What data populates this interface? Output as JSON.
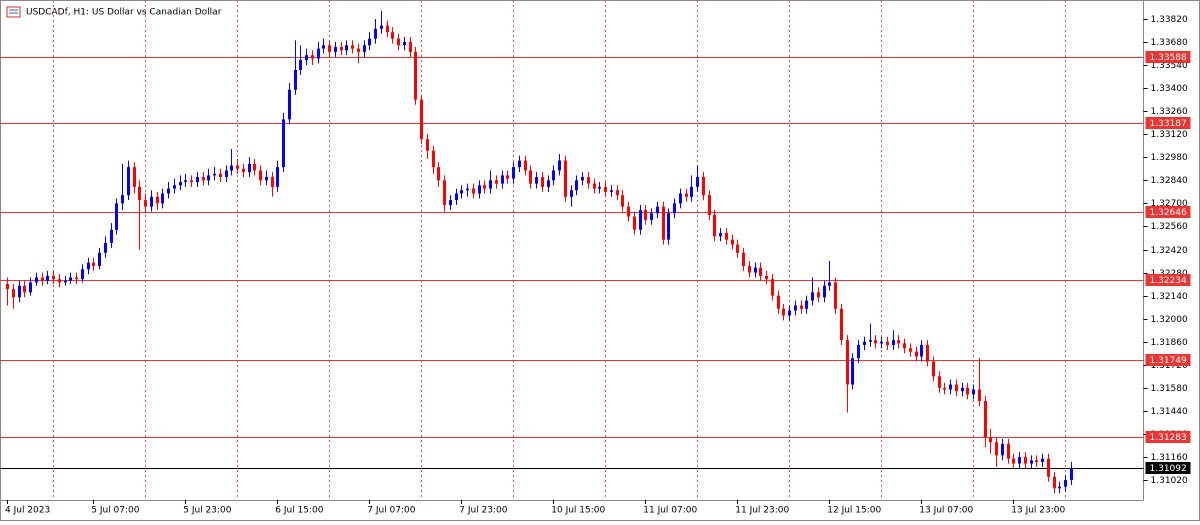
{
  "chart_data": {
    "type": "candlestick",
    "title": "USDCADf, H1:  US Dollar vs Canadian Dollar",
    "up_color": "#0000ff",
    "down_color": "#ff0000",
    "level_color": "#ee3333",
    "last_color": "#000000",
    "ylim": [
      1.30899,
      1.33935
    ],
    "yticks": [
      {
        "value": 1.3382,
        "label": "1.33820"
      },
      {
        "value": 1.3368,
        "label": "1.33680"
      },
      {
        "value": 1.3354,
        "label": "1.33540"
      },
      {
        "value": 1.334,
        "label": "1.33400"
      },
      {
        "value": 1.3326,
        "label": "1.33260"
      },
      {
        "value": 1.3312,
        "label": "1.33120"
      },
      {
        "value": 1.3298,
        "label": "1.32980"
      },
      {
        "value": 1.3284,
        "label": "1.32840"
      },
      {
        "value": 1.327,
        "label": "1.32700"
      },
      {
        "value": 1.3256,
        "label": "1.32560"
      },
      {
        "value": 1.3242,
        "label": "1.32420"
      },
      {
        "value": 1.3228,
        "label": "1.32280"
      },
      {
        "value": 1.3214,
        "label": "1.32140"
      },
      {
        "value": 1.32,
        "label": "1.32000"
      },
      {
        "value": 1.3186,
        "label": "1.31860"
      },
      {
        "value": 1.3172,
        "label": "1.31720"
      },
      {
        "value": 1.3158,
        "label": "1.31580"
      },
      {
        "value": 1.3144,
        "label": "1.31440"
      },
      {
        "value": 1.313,
        "label": "1.31300"
      },
      {
        "value": 1.3116,
        "label": "1.31160"
      },
      {
        "value": 1.3102,
        "label": "1.31020"
      }
    ],
    "levels": [
      1.33588,
      1.33187,
      1.32646,
      1.32234,
      1.31749,
      1.31283
    ],
    "last_price": 1.31092,
    "categories": [
      "4 Jul 2023",
      null,
      null,
      null,
      null,
      null,
      null,
      null,
      null,
      null,
      null,
      null,
      null,
      null,
      null,
      "5 Jul 07:00",
      null,
      null,
      null,
      null,
      null,
      null,
      null,
      null,
      null,
      null,
      null,
      null,
      null,
      null,
      null,
      "5 Jul 23:00",
      null,
      null,
      null,
      null,
      null,
      null,
      null,
      null,
      null,
      null,
      null,
      null,
      null,
      null,
      null,
      "6 Jul 15:00",
      null,
      null,
      null,
      null,
      null,
      null,
      null,
      null,
      null,
      null,
      null,
      null,
      null,
      null,
      null,
      "7 Jul 07:00",
      null,
      null,
      null,
      null,
      null,
      null,
      null,
      null,
      null,
      null,
      null,
      null,
      null,
      null,
      null,
      "7 Jul 23:00",
      null,
      null,
      null,
      null,
      null,
      null,
      null,
      null,
      null,
      null,
      null,
      null,
      null,
      null,
      null,
      "10 Jul 15:00",
      null,
      null,
      null,
      null,
      null,
      null,
      null,
      null,
      null,
      null,
      null,
      null,
      null,
      null,
      null,
      "11 Jul 07:00",
      null,
      null,
      null,
      null,
      null,
      null,
      null,
      null,
      null,
      null,
      null,
      null,
      null,
      null,
      null,
      "11 Jul 23:00",
      null,
      null,
      null,
      null,
      null,
      null,
      null,
      null,
      null,
      null,
      null,
      null,
      null,
      null,
      null,
      "12 Jul 15:00",
      null,
      null,
      null,
      null,
      null,
      null,
      null,
      null,
      null,
      null,
      null,
      null,
      null,
      null,
      null,
      "13 Jul 07:00",
      null,
      null,
      null,
      null,
      null,
      null,
      null,
      null,
      null,
      null,
      null,
      null,
      null,
      null,
      null,
      "13 Jul 23:00",
      null,
      null,
      null,
      null,
      null,
      null,
      null,
      null,
      null,
      null
    ],
    "ohlc": [
      [
        1.3221,
        1.3225,
        1.3208,
        1.3218
      ],
      [
        1.3218,
        1.3221,
        1.3206,
        1.3213
      ],
      [
        1.3213,
        1.3223,
        1.321,
        1.322
      ],
      [
        1.322,
        1.3223,
        1.3213,
        1.3216
      ],
      [
        1.3216,
        1.3225,
        1.3214,
        1.3222
      ],
      [
        1.3222,
        1.3228,
        1.322,
        1.3225
      ],
      [
        1.3225,
        1.3228,
        1.322,
        1.3223
      ],
      [
        1.3223,
        1.3229,
        1.3221,
        1.3226
      ],
      [
        1.3226,
        1.3229,
        1.3221,
        1.3224
      ],
      [
        1.3224,
        1.3227,
        1.3219,
        1.3222
      ],
      [
        1.3222,
        1.3226,
        1.322,
        1.3223
      ],
      [
        1.3223,
        1.3228,
        1.3221,
        1.3225
      ],
      [
        1.3225,
        1.3228,
        1.3221,
        1.3224
      ],
      [
        1.3224,
        1.3233,
        1.3222,
        1.323
      ],
      [
        1.323,
        1.3237,
        1.3227,
        1.3234
      ],
      [
        1.3234,
        1.3237,
        1.3229,
        1.3232
      ],
      [
        1.3232,
        1.3243,
        1.323,
        1.324
      ],
      [
        1.324,
        1.325,
        1.3237,
        1.3246
      ],
      [
        1.3246,
        1.3258,
        1.3243,
        1.3254
      ],
      [
        1.3254,
        1.3273,
        1.3251,
        1.327
      ],
      [
        1.327,
        1.3294,
        1.3266,
        1.3275
      ],
      [
        1.3275,
        1.3296,
        1.3272,
        1.3292
      ],
      [
        1.3292,
        1.3295,
        1.3276,
        1.328
      ],
      [
        1.328,
        1.3284,
        1.3242,
        1.3272
      ],
      [
        1.3272,
        1.3276,
        1.3264,
        1.3268
      ],
      [
        1.3268,
        1.3278,
        1.3265,
        1.3274
      ],
      [
        1.3274,
        1.3277,
        1.3266,
        1.327
      ],
      [
        1.327,
        1.3279,
        1.3267,
        1.3276
      ],
      [
        1.3276,
        1.3283,
        1.3273,
        1.3279
      ],
      [
        1.3279,
        1.3285,
        1.3276,
        1.3281
      ],
      [
        1.3281,
        1.3287,
        1.3278,
        1.3283
      ],
      [
        1.3283,
        1.3288,
        1.328,
        1.3284
      ],
      [
        1.3284,
        1.3287,
        1.328,
        1.3283
      ],
      [
        1.3283,
        1.3289,
        1.328,
        1.3286
      ],
      [
        1.3286,
        1.3289,
        1.3281,
        1.3284
      ],
      [
        1.3284,
        1.3291,
        1.3281,
        1.3287
      ],
      [
        1.3287,
        1.3292,
        1.3284,
        1.3288
      ],
      [
        1.3288,
        1.3291,
        1.3283,
        1.3286
      ],
      [
        1.3286,
        1.3293,
        1.3283,
        1.329
      ],
      [
        1.329,
        1.3303,
        1.3287,
        1.3293
      ],
      [
        1.3293,
        1.3297,
        1.3288,
        1.3291
      ],
      [
        1.3291,
        1.3294,
        1.3286,
        1.3289
      ],
      [
        1.3289,
        1.3298,
        1.3286,
        1.3294
      ],
      [
        1.3294,
        1.3297,
        1.3287,
        1.329
      ],
      [
        1.329,
        1.3293,
        1.3281,
        1.3284
      ],
      [
        1.3284,
        1.329,
        1.3281,
        1.3286
      ],
      [
        1.3286,
        1.3289,
        1.3274,
        1.328
      ],
      [
        1.328,
        1.3296,
        1.3277,
        1.3292
      ],
      [
        1.3292,
        1.3325,
        1.3289,
        1.3321
      ],
      [
        1.3321,
        1.3343,
        1.3318,
        1.3339
      ],
      [
        1.3339,
        1.3369,
        1.3336,
        1.3351
      ],
      [
        1.3351,
        1.3366,
        1.3348,
        1.3357
      ],
      [
        1.3357,
        1.3364,
        1.3354,
        1.336
      ],
      [
        1.336,
        1.3363,
        1.3354,
        1.3358
      ],
      [
        1.3358,
        1.3368,
        1.3355,
        1.3364
      ],
      [
        1.3364,
        1.337,
        1.3361,
        1.3366
      ],
      [
        1.3366,
        1.3369,
        1.3359,
        1.3362
      ],
      [
        1.3362,
        1.3368,
        1.3359,
        1.3365
      ],
      [
        1.3365,
        1.3368,
        1.336,
        1.3363
      ],
      [
        1.3363,
        1.3369,
        1.336,
        1.3366
      ],
      [
        1.3366,
        1.3369,
        1.3361,
        1.3364
      ],
      [
        1.3364,
        1.3367,
        1.3355,
        1.3362
      ],
      [
        1.3362,
        1.3369,
        1.3359,
        1.3366
      ],
      [
        1.3366,
        1.3374,
        1.3363,
        1.337
      ],
      [
        1.337,
        1.3382,
        1.3367,
        1.3376
      ],
      [
        1.3376,
        1.3387,
        1.3373,
        1.3378
      ],
      [
        1.3378,
        1.3381,
        1.3371,
        1.3374
      ],
      [
        1.3374,
        1.3377,
        1.3367,
        1.337
      ],
      [
        1.337,
        1.3373,
        1.3363,
        1.3366
      ],
      [
        1.3366,
        1.3371,
        1.3363,
        1.3368
      ],
      [
        1.3368,
        1.3371,
        1.3359,
        1.3362
      ],
      [
        1.3362,
        1.3365,
        1.333,
        1.3333
      ],
      [
        1.3333,
        1.3336,
        1.3306,
        1.3309
      ],
      [
        1.3309,
        1.3312,
        1.3297,
        1.3302
      ],
      [
        1.3302,
        1.3305,
        1.3288,
        1.3292
      ],
      [
        1.3292,
        1.3295,
        1.328,
        1.3284
      ],
      [
        1.3284,
        1.3287,
        1.3265,
        1.3269
      ],
      [
        1.3269,
        1.3275,
        1.3266,
        1.3272
      ],
      [
        1.3272,
        1.3279,
        1.3269,
        1.3276
      ],
      [
        1.3276,
        1.3281,
        1.3273,
        1.3278
      ],
      [
        1.3278,
        1.3282,
        1.3274,
        1.3279
      ],
      [
        1.3279,
        1.3282,
        1.3273,
        1.3276
      ],
      [
        1.3276,
        1.3284,
        1.3273,
        1.3281
      ],
      [
        1.3281,
        1.3284,
        1.3276,
        1.3279
      ],
      [
        1.3279,
        1.329,
        1.3276,
        1.3284
      ],
      [
        1.3284,
        1.3287,
        1.3279,
        1.3282
      ],
      [
        1.3282,
        1.329,
        1.3279,
        1.3287
      ],
      [
        1.3287,
        1.329,
        1.3282,
        1.3285
      ],
      [
        1.3285,
        1.3295,
        1.3282,
        1.3292
      ],
      [
        1.3292,
        1.3299,
        1.3289,
        1.3296
      ],
      [
        1.3296,
        1.3299,
        1.3287,
        1.329
      ],
      [
        1.329,
        1.3293,
        1.3279,
        1.3282
      ],
      [
        1.3282,
        1.3289,
        1.3279,
        1.3286
      ],
      [
        1.3286,
        1.3289,
        1.3277,
        1.328
      ],
      [
        1.328,
        1.3287,
        1.3277,
        1.3284
      ],
      [
        1.3284,
        1.3293,
        1.3281,
        1.329
      ],
      [
        1.329,
        1.33,
        1.3287,
        1.3296
      ],
      [
        1.3296,
        1.3299,
        1.3271,
        1.3274
      ],
      [
        1.3274,
        1.3281,
        1.3268,
        1.3278
      ],
      [
        1.3278,
        1.3287,
        1.3275,
        1.3284
      ],
      [
        1.3284,
        1.3289,
        1.3281,
        1.3286
      ],
      [
        1.3286,
        1.3289,
        1.3279,
        1.3282
      ],
      [
        1.3282,
        1.3285,
        1.3276,
        1.3279
      ],
      [
        1.3279,
        1.3283,
        1.3276,
        1.328
      ],
      [
        1.328,
        1.3283,
        1.3274,
        1.3277
      ],
      [
        1.3277,
        1.3281,
        1.3274,
        1.3278
      ],
      [
        1.3278,
        1.3281,
        1.3272,
        1.3275
      ],
      [
        1.3275,
        1.3278,
        1.3265,
        1.3268
      ],
      [
        1.3268,
        1.3271,
        1.3259,
        1.3262
      ],
      [
        1.3262,
        1.3265,
        1.3251,
        1.3254
      ],
      [
        1.3254,
        1.3269,
        1.3251,
        1.3266
      ],
      [
        1.3266,
        1.3269,
        1.3257,
        1.326
      ],
      [
        1.326,
        1.3267,
        1.3257,
        1.3264
      ],
      [
        1.3264,
        1.3271,
        1.3261,
        1.3268
      ],
      [
        1.3268,
        1.3271,
        1.3245,
        1.3248
      ],
      [
        1.3248,
        1.3267,
        1.3245,
        1.3264
      ],
      [
        1.3264,
        1.3273,
        1.3261,
        1.327
      ],
      [
        1.327,
        1.3279,
        1.3267,
        1.3276
      ],
      [
        1.3276,
        1.3279,
        1.3271,
        1.3274
      ],
      [
        1.3274,
        1.3287,
        1.3271,
        1.328
      ],
      [
        1.328,
        1.3293,
        1.3277,
        1.3286
      ],
      [
        1.3286,
        1.3289,
        1.3272,
        1.3275
      ],
      [
        1.3275,
        1.3278,
        1.326,
        1.3263
      ],
      [
        1.3263,
        1.3266,
        1.3247,
        1.325
      ],
      [
        1.325,
        1.3255,
        1.3247,
        1.3252
      ],
      [
        1.3252,
        1.3255,
        1.3245,
        1.3248
      ],
      [
        1.3248,
        1.3251,
        1.3242,
        1.3245
      ],
      [
        1.3245,
        1.3248,
        1.3237,
        1.324
      ],
      [
        1.324,
        1.3243,
        1.3229,
        1.3232
      ],
      [
        1.3232,
        1.3235,
        1.3225,
        1.3228
      ],
      [
        1.3228,
        1.3234,
        1.3225,
        1.3231
      ],
      [
        1.3231,
        1.3234,
        1.3223,
        1.3226
      ],
      [
        1.3226,
        1.3229,
        1.3221,
        1.3224
      ],
      [
        1.3224,
        1.3227,
        1.3211,
        1.3214
      ],
      [
        1.3214,
        1.3217,
        1.3203,
        1.3206
      ],
      [
        1.3206,
        1.3209,
        1.3199,
        1.3202
      ],
      [
        1.3202,
        1.3208,
        1.3199,
        1.3205
      ],
      [
        1.3205,
        1.3211,
        1.3202,
        1.3208
      ],
      [
        1.3208,
        1.3211,
        1.3203,
        1.3206
      ],
      [
        1.3206,
        1.3214,
        1.3203,
        1.3211
      ],
      [
        1.3211,
        1.3225,
        1.3208,
        1.3216
      ],
      [
        1.3216,
        1.3219,
        1.321,
        1.3213
      ],
      [
        1.3213,
        1.3223,
        1.321,
        1.322
      ],
      [
        1.322,
        1.3235,
        1.3217,
        1.3222
      ],
      [
        1.3222,
        1.3225,
        1.3203,
        1.3206
      ],
      [
        1.3206,
        1.3209,
        1.3184,
        1.3187
      ],
      [
        1.3187,
        1.319,
        1.3143,
        1.316
      ],
      [
        1.316,
        1.3179,
        1.3157,
        1.3176
      ],
      [
        1.3176,
        1.3187,
        1.3173,
        1.3184
      ],
      [
        1.3184,
        1.3189,
        1.3181,
        1.3186
      ],
      [
        1.3186,
        1.3197,
        1.3183,
        1.3187
      ],
      [
        1.3187,
        1.319,
        1.3182,
        1.3185
      ],
      [
        1.3185,
        1.3189,
        1.3182,
        1.3186
      ],
      [
        1.3186,
        1.3189,
        1.3181,
        1.3184
      ],
      [
        1.3184,
        1.3193,
        1.3181,
        1.3187
      ],
      [
        1.3187,
        1.319,
        1.3182,
        1.3185
      ],
      [
        1.3185,
        1.3188,
        1.3179,
        1.3182
      ],
      [
        1.3182,
        1.3185,
        1.3177,
        1.318
      ],
      [
        1.318,
        1.3183,
        1.3174,
        1.3177
      ],
      [
        1.3177,
        1.3187,
        1.3174,
        1.3184
      ],
      [
        1.3184,
        1.3187,
        1.3171,
        1.3174
      ],
      [
        1.3174,
        1.3177,
        1.3162,
        1.3165
      ],
      [
        1.3165,
        1.3168,
        1.3155,
        1.3158
      ],
      [
        1.3158,
        1.3161,
        1.3154,
        1.3157
      ],
      [
        1.3157,
        1.3163,
        1.3154,
        1.316
      ],
      [
        1.316,
        1.3163,
        1.3153,
        1.3156
      ],
      [
        1.3156,
        1.3161,
        1.3153,
        1.3158
      ],
      [
        1.3158,
        1.3161,
        1.3151,
        1.3154
      ],
      [
        1.3154,
        1.316,
        1.3151,
        1.3157
      ],
      [
        1.3157,
        1.3176,
        1.3147,
        1.315
      ],
      [
        1.315,
        1.3153,
        1.3122,
        1.3128
      ],
      [
        1.3128,
        1.3133,
        1.3118,
        1.3125
      ],
      [
        1.3125,
        1.3128,
        1.311,
        1.3117
      ],
      [
        1.3117,
        1.3127,
        1.3114,
        1.3124
      ],
      [
        1.3124,
        1.3127,
        1.3112,
        1.3115
      ],
      [
        1.3115,
        1.3118,
        1.3109,
        1.3112
      ],
      [
        1.3112,
        1.3119,
        1.3109,
        1.3116
      ],
      [
        1.3116,
        1.3119,
        1.3109,
        1.3112
      ],
      [
        1.3112,
        1.3117,
        1.3109,
        1.3114
      ],
      [
        1.3114,
        1.3117,
        1.311,
        1.3113
      ],
      [
        1.3113,
        1.3118,
        1.311,
        1.3115
      ],
      [
        1.3115,
        1.3118,
        1.3101,
        1.3104
      ],
      [
        1.3104,
        1.3107,
        1.3094,
        1.3097
      ],
      [
        1.3097,
        1.3101,
        1.3094,
        1.3098
      ],
      [
        1.3098,
        1.3105,
        1.3095,
        1.3102
      ],
      [
        1.3102,
        1.3113,
        1.3099,
        1.31092
      ]
    ]
  }
}
